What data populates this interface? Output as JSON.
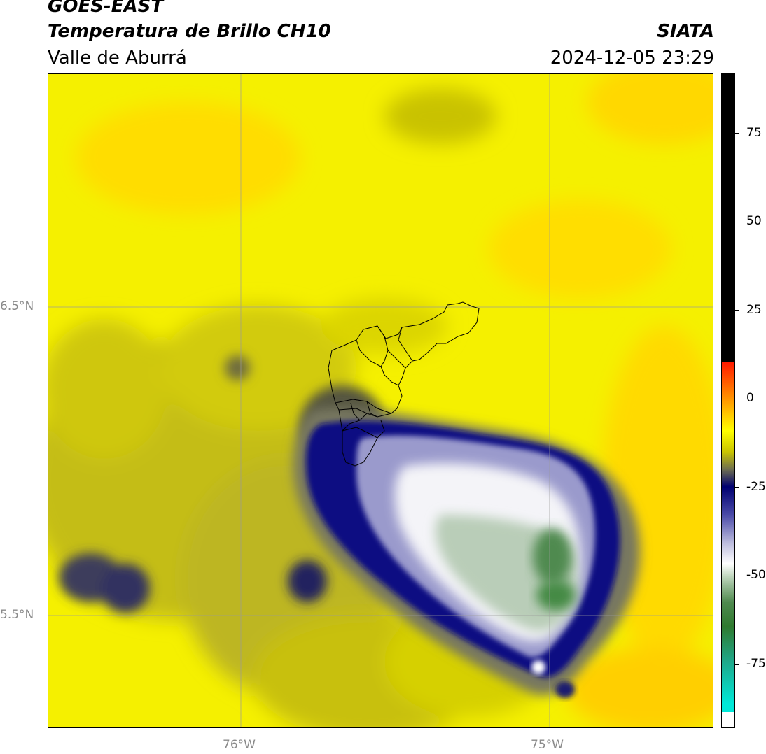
{
  "header": {
    "title_line1": "GOES-EAST",
    "title_line2": "Temperatura de Brillo CH10",
    "organization": "SIATA",
    "subtitle": "Valle de Aburrá",
    "timestamp": "2024-12-05 23:29"
  },
  "map": {
    "lat_labels": [
      "6.5°N",
      "5.5°N"
    ],
    "lon_labels": [
      "76°W",
      "75°W"
    ]
  },
  "colorbar": {
    "ticks": [
      "75",
      "50",
      "25",
      "0",
      "-25",
      "-50",
      "-75"
    ],
    "tick_values": [
      75,
      50,
      25,
      0,
      -25,
      -50,
      -75
    ],
    "range": [
      -93,
      92
    ],
    "colors": {
      "warm": "#000000",
      "red": "#ff2a00",
      "orange": "#ff8c00",
      "yellow": "#ffff00",
      "olive": "#6b6b2a",
      "navy": "#000080",
      "white": "#ffffff",
      "green": "#2f8a2f",
      "cyan": "#00e8d8"
    }
  }
}
